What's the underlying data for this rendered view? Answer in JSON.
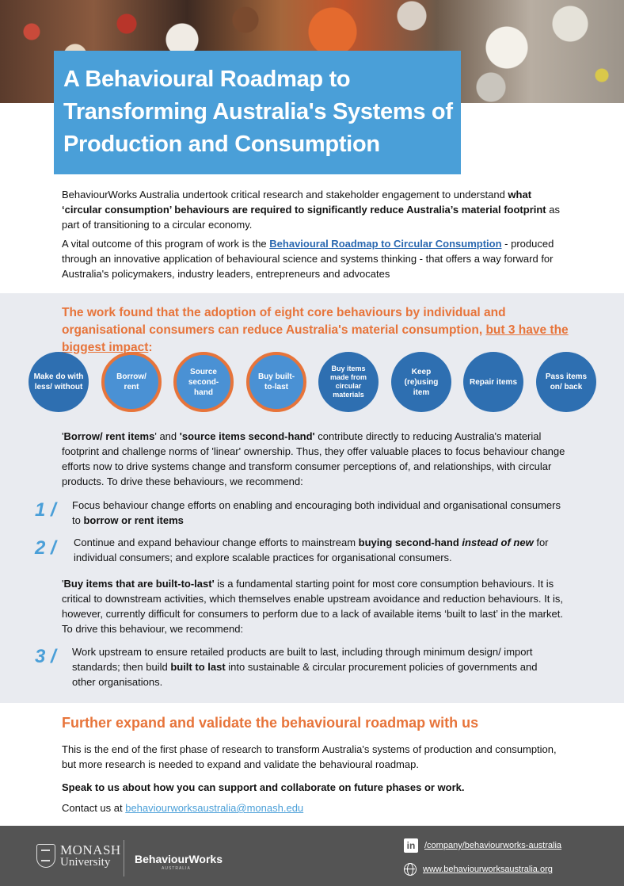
{
  "title": "A Behavioural Roadmap to Transforming Australia's Systems of Production and Consumption",
  "intro": {
    "p1_start": "BehaviourWorks Australia undertook critical research and stakeholder engagement to understand ",
    "p1_bold": "what ‘circular consumption’ behaviours are required to significantly reduce Australia’s material footprint",
    "p1_end": " as part of transitioning to a circular economy.",
    "p2_start": "A vital outcome of this program of work is the ",
    "p2_link": "Behavioural Roadmap to Circular Consumption",
    "p2_end": " - produced through an innovative application of behavioural science and systems thinking - that offers a way forward for Australia's policymakers, industry leaders, entrepreneurs and advocates"
  },
  "headline": {
    "start": "The work found that the adoption of eight core behaviours by individual and organisational consumers can reduce Australia's material consumption, ",
    "underlined": "but 3 have the biggest impact",
    "end": ":"
  },
  "behaviours": [
    {
      "label": "Make do with less/ without",
      "highlight": false
    },
    {
      "label": "Borrow/ rent",
      "highlight": true
    },
    {
      "label": "Source second-hand",
      "highlight": true
    },
    {
      "label": "Buy built-to-last",
      "highlight": true
    },
    {
      "label": "Buy items made from circular materials",
      "highlight": false
    },
    {
      "label": "Keep (re)using item",
      "highlight": false
    },
    {
      "label": "Repair items",
      "highlight": false
    },
    {
      "label": "Pass items on/ back",
      "highlight": false
    }
  ],
  "para1": {
    "quote_open": "'",
    "b1": "Borrow/ rent items",
    "mid1": "' and ",
    "b2": "'source items second-hand'",
    "rest": " contribute directly to reducing Australia's material footprint and challenge norms of 'linear' ownership. Thus, they offer valuable places to focus behaviour change efforts now to drive systems change and transform consumer perceptions of, and relationships, with circular products. To drive these behaviours, we recommend:"
  },
  "rec1": {
    "num": "1 /",
    "text": "Focus behaviour change efforts on enabling and encouraging both individual and organisational consumers to ",
    "bold": "borrow or rent items"
  },
  "rec2": {
    "num": "2 /",
    "text": "Continue and expand behaviour change efforts to mainstream ",
    "bold": "buying second-hand",
    "italic": "instead of new",
    "end": " for individual consumers; and explore scalable practices for organisational consumers."
  },
  "para2": {
    "quote_open": "'",
    "bold": "Buy items that are built-to-last'",
    "rest": " is a fundamental starting point for most core consumption behaviours. It is critical to downstream activities, which themselves enable upstream avoidance and reduction behaviours. It is, however, currently difficult for consumers to perform due to a lack of available items ‘built to last’ in the market. To drive this behaviour, we recommend:"
  },
  "rec3": {
    "num": "3 /",
    "text": "Work upstream to ensure retailed products are built to last, including through minimum design/ import standards; then build ",
    "bold": "built to last",
    "end": " into sustainable & circular procurement policies of governments and other organisations."
  },
  "further": {
    "heading": "Further expand and validate the behavioural roadmap with us",
    "p1": "This is the end of the first phase of research to transform Australia's systems of production and consumption, but more research is needed to expand and validate the behavioural roadmap.",
    "p2": "Speak to us about how you can support and collaborate on future phases or work.",
    "contact_label": "Contact us at ",
    "email": "behaviourworksaustralia@monash.edu"
  },
  "footer": {
    "monash_line1": "MONASH",
    "monash_line2": "University",
    "bw": "BehaviourWorks",
    "bw_sub": "AUSTRALIA",
    "linkedin_icon_text": "in",
    "linkedin": "/company/behaviourworks-australia",
    "website": "www.behaviourworksaustralia.org"
  },
  "colors": {
    "accent_orange": "#e7743a",
    "accent_blue": "#4a9fd8",
    "circle_blue": "#2e6fb1",
    "footer_grey": "#545454"
  }
}
